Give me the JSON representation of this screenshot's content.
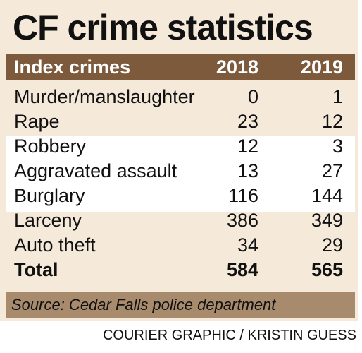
{
  "title": "CF crime statistics",
  "source": "Source: Cedar Falls police department",
  "credit": "COURIER GRAPHIC / KRISTIN GUESS",
  "colors": {
    "background": "#f5e9d9",
    "header": "#7d5a3c",
    "source_bar": "#a88a6c",
    "highlight": "#ffffff"
  },
  "chart_data": {
    "type": "table",
    "title": "CF crime statistics",
    "columns": [
      "Index crimes",
      "2018",
      "2019"
    ],
    "rows": [
      {
        "label": "Murder/manslaughter",
        "v2018": "0",
        "v2019": "1"
      },
      {
        "label": "Rape",
        "v2018": "23",
        "v2019": "12"
      },
      {
        "label": "Robbery",
        "v2018": "12",
        "v2019": "3"
      },
      {
        "label": "Aggravated assault",
        "v2018": "13",
        "v2019": "27"
      },
      {
        "label": "Burglary",
        "v2018": "116",
        "v2019": "144"
      },
      {
        "label": "Larceny",
        "v2018": "386",
        "v2019": "349"
      },
      {
        "label": "Auto theft",
        "v2018": "34",
        "v2019": "29"
      }
    ],
    "total": {
      "label": "Total",
      "v2018": "584",
      "v2019": "565"
    }
  }
}
